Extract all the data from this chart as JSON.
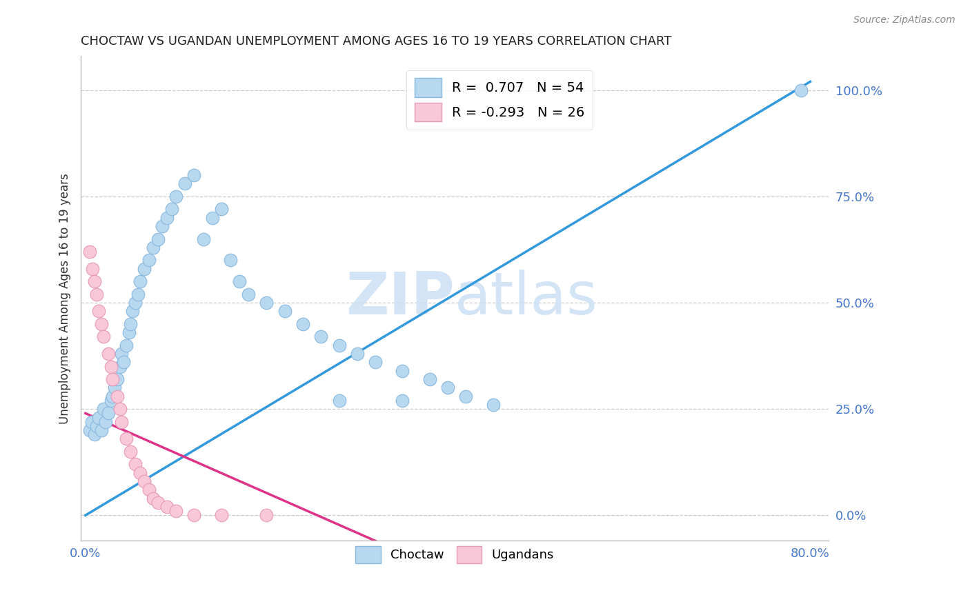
{
  "title": "CHOCTAW VS UGANDAN UNEMPLOYMENT AMONG AGES 16 TO 19 YEARS CORRELATION CHART",
  "source": "Source: ZipAtlas.com",
  "ylabel": "Unemployment Among Ages 16 to 19 years",
  "xlim": [
    -0.005,
    0.82
  ],
  "ylim": [
    -0.06,
    1.08
  ],
  "xticks": [
    0.0,
    0.8
  ],
  "xtick_labels": [
    "0.0%",
    "80.0%"
  ],
  "yticks_right": [
    0.0,
    0.25,
    0.5,
    0.75,
    1.0
  ],
  "ytick_labels_right": [
    "0.0%",
    "25.0%",
    "50.0%",
    "75.0%",
    "100.0%"
  ],
  "choctaw_color": "#b8d8f0",
  "ugandan_color": "#f8c8d8",
  "choctaw_edge_color": "#88b8e0",
  "ugandan_edge_color": "#e898b8",
  "blue_line_color": "#3399dd",
  "pink_line_color": "#dd3388",
  "r_choctaw": 0.707,
  "n_choctaw": 54,
  "r_ugandan": -0.293,
  "n_ugandan": 26,
  "legend_label_choctaw": "Choctaw",
  "legend_label_ugandan": "Ugandans",
  "watermark_zip": "ZIP",
  "watermark_atlas": "atlas",
  "title_color": "#222222",
  "ylabel_color": "#333333",
  "tick_color": "#4477cc",
  "background_color": "#ffffff",
  "blue_line_x": [
    0.0,
    0.8
  ],
  "blue_line_y": [
    0.0,
    1.02
  ],
  "pink_line_x": [
    0.0,
    0.32
  ],
  "pink_line_y": [
    0.24,
    -0.06
  ],
  "choctaw_x": [
    0.005,
    0.007,
    0.01,
    0.012,
    0.015,
    0.018,
    0.02,
    0.022,
    0.025,
    0.028,
    0.03,
    0.032,
    0.035,
    0.038,
    0.04,
    0.042,
    0.045,
    0.048,
    0.05,
    0.052,
    0.055,
    0.058,
    0.06,
    0.065,
    0.07,
    0.075,
    0.08,
    0.085,
    0.09,
    0.095,
    0.1,
    0.11,
    0.12,
    0.13,
    0.14,
    0.15,
    0.16,
    0.17,
    0.18,
    0.2,
    0.22,
    0.24,
    0.26,
    0.28,
    0.3,
    0.32,
    0.35,
    0.38,
    0.4,
    0.42,
    0.45,
    0.28,
    0.79,
    0.35
  ],
  "choctaw_y": [
    0.2,
    0.22,
    0.19,
    0.21,
    0.23,
    0.2,
    0.25,
    0.22,
    0.24,
    0.27,
    0.28,
    0.3,
    0.32,
    0.35,
    0.38,
    0.36,
    0.4,
    0.43,
    0.45,
    0.48,
    0.5,
    0.52,
    0.55,
    0.58,
    0.6,
    0.63,
    0.65,
    0.68,
    0.7,
    0.72,
    0.75,
    0.78,
    0.8,
    0.65,
    0.7,
    0.72,
    0.6,
    0.55,
    0.52,
    0.5,
    0.48,
    0.45,
    0.42,
    0.4,
    0.38,
    0.36,
    0.34,
    0.32,
    0.3,
    0.28,
    0.26,
    0.27,
    1.0,
    0.27
  ],
  "ugandan_x": [
    0.005,
    0.008,
    0.01,
    0.012,
    0.015,
    0.018,
    0.02,
    0.025,
    0.028,
    0.03,
    0.035,
    0.038,
    0.04,
    0.045,
    0.05,
    0.055,
    0.06,
    0.065,
    0.07,
    0.075,
    0.08,
    0.09,
    0.1,
    0.12,
    0.15,
    0.2
  ],
  "ugandan_y": [
    0.62,
    0.58,
    0.55,
    0.52,
    0.48,
    0.45,
    0.42,
    0.38,
    0.35,
    0.32,
    0.28,
    0.25,
    0.22,
    0.18,
    0.15,
    0.12,
    0.1,
    0.08,
    0.06,
    0.04,
    0.03,
    0.02,
    0.01,
    0.0,
    0.0,
    0.0
  ]
}
